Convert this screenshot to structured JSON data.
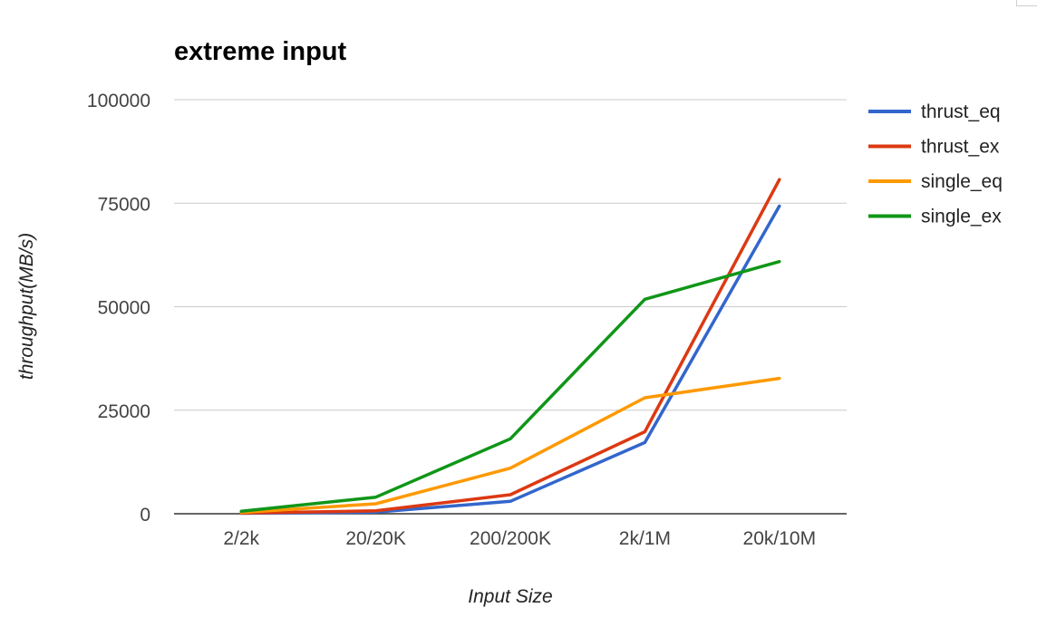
{
  "chart_data": {
    "type": "line",
    "title": "extreme input",
    "xlabel": "Input Size",
    "ylabel": "throughput(MB/s)",
    "categories": [
      "2/2k",
      "20/20K",
      "200/200K",
      "2k/1M",
      "20k/10M"
    ],
    "ylim": [
      0,
      100000
    ],
    "yticks": [
      0,
      25000,
      50000,
      75000,
      100000
    ],
    "grid": true,
    "legend_position": "right",
    "series": [
      {
        "name": "thrust_eq",
        "color": "#3366cc",
        "values": [
          100,
          400,
          3000,
          17200,
          74300
        ]
      },
      {
        "name": "thrust_ex",
        "color": "#dc3912",
        "values": [
          150,
          700,
          4600,
          19800,
          80700
        ]
      },
      {
        "name": "single_eq",
        "color": "#ff9900",
        "values": [
          300,
          2400,
          11000,
          28000,
          32700
        ]
      },
      {
        "name": "single_ex",
        "color": "#109618",
        "values": [
          600,
          4000,
          18100,
          51800,
          60900
        ]
      }
    ]
  }
}
